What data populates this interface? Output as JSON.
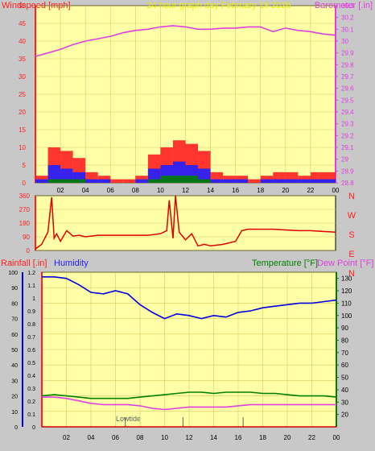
{
  "chart_data": [
    {
      "type": "line",
      "title": "24 hour graph day   February 19 2026",
      "ylabel_left": "Windspeed [mph]",
      "ylabel_right": "Barometer [.in]",
      "x_ticks": [
        "02",
        "04",
        "06",
        "08",
        "10",
        "12",
        "14",
        "16",
        "18",
        "20",
        "22",
        "00"
      ],
      "y_left_ticks": [
        "0",
        "5",
        "10",
        "15",
        "20",
        "25",
        "30",
        "35",
        "40",
        "45",
        "50"
      ],
      "y_left_range": [
        0,
        50
      ],
      "y_right_ticks": [
        "28.8",
        "28.9",
        "29",
        "29.1",
        "29.2",
        "29.3",
        "29.4",
        "29.5",
        "29.6",
        "29.7",
        "29.8",
        "29.9",
        "30",
        "30.1",
        "30.2",
        "30.3"
      ],
      "y_right_range": [
        28.8,
        30.3
      ],
      "grid": true,
      "series": [
        {
          "axis": "right",
          "color": "#e040e0",
          "x": [
            0,
            1,
            2,
            3,
            4,
            5,
            6,
            7,
            8,
            9,
            10,
            11,
            12,
            13,
            14,
            15,
            16,
            17,
            18,
            19,
            20,
            21,
            22,
            23,
            24
          ],
          "values": [
            29.87,
            29.9,
            29.93,
            29.97,
            30.0,
            30.02,
            30.04,
            30.07,
            30.09,
            30.1,
            30.12,
            30.13,
            30.12,
            30.1,
            30.1,
            30.11,
            30.11,
            30.12,
            30.12,
            30.08,
            30.11,
            30.09,
            30.08,
            30.06,
            30.05
          ]
        },
        {
          "axis": "left",
          "style": "bars",
          "color": "#ff2020",
          "x": [
            0,
            1,
            2,
            3,
            4,
            5,
            6,
            7,
            8,
            9,
            10,
            11,
            12,
            13,
            14,
            15,
            16,
            17,
            18,
            19,
            20,
            21,
            22,
            23,
            24
          ],
          "values": [
            2,
            10,
            9,
            7,
            3,
            2,
            1,
            1,
            2,
            8,
            10,
            12,
            11,
            9,
            3,
            2,
            2,
            1,
            2,
            3,
            3,
            2,
            3,
            3,
            3
          ]
        },
        {
          "axis": "left",
          "style": "bars",
          "color": "#2020ff",
          "x": [
            0,
            1,
            2,
            3,
            4,
            5,
            6,
            7,
            8,
            9,
            10,
            11,
            12,
            13,
            14,
            15,
            16,
            17,
            18,
            19,
            20,
            21,
            22,
            23,
            24
          ],
          "values": [
            1,
            5,
            4,
            3,
            1,
            1,
            0,
            0,
            1,
            4,
            5,
            6,
            5,
            4,
            1,
            1,
            1,
            0,
            1,
            1,
            1,
            1,
            1,
            1,
            1
          ]
        },
        {
          "axis": "left",
          "style": "bars",
          "color": "#008000",
          "x": [
            0,
            1,
            2,
            3,
            4,
            5,
            6,
            7,
            8,
            9,
            10,
            11,
            12,
            13,
            14,
            15,
            16,
            17,
            18,
            19,
            20,
            21,
            22,
            23,
            24
          ],
          "values": [
            0,
            1,
            1,
            1,
            0,
            0,
            0,
            0,
            0,
            1,
            2,
            2,
            2,
            1,
            0,
            0,
            0,
            0,
            0,
            0,
            0,
            0,
            0,
            0,
            0
          ]
        }
      ]
    },
    {
      "type": "line",
      "y_left_ticks": [
        "0",
        "90",
        "180",
        "270",
        "360"
      ],
      "y_left_range": [
        0,
        360
      ],
      "y_right_labels": [
        "N",
        "W",
        "S",
        "E",
        "N"
      ],
      "grid": true,
      "series": [
        {
          "color": "#dd0000",
          "x": [
            0,
            0.5,
            1,
            1.3,
            1.5,
            1.7,
            2,
            2.5,
            3,
            3.5,
            4,
            5,
            6,
            7,
            8,
            9,
            10,
            10.5,
            10.7,
            11,
            11.2,
            11.5,
            11.8,
            12,
            12.5,
            13,
            13.5,
            14,
            14.5,
            15,
            16,
            16.5,
            17,
            18,
            19,
            20,
            21,
            22,
            23,
            24
          ],
          "values": [
            10,
            40,
            120,
            350,
            80,
            110,
            60,
            130,
            95,
            100,
            90,
            100,
            100,
            100,
            100,
            100,
            110,
            130,
            330,
            80,
            360,
            120,
            90,
            70,
            110,
            30,
            40,
            30,
            35,
            40,
            60,
            130,
            140,
            140,
            140,
            135,
            130,
            130,
            125,
            120
          ]
        }
      ]
    },
    {
      "type": "line",
      "ylabel_left": "Rainfall [.in]",
      "ylabel_left2": "Humidity",
      "ylabel_right": "Temperature [°F]",
      "ylabel_right2": "Dew Point [°F]",
      "annotation": "Lowtide",
      "x_ticks": [
        "02",
        "04",
        "06",
        "08",
        "10",
        "12",
        "14",
        "16",
        "18",
        "20",
        "22",
        "00"
      ],
      "humidity_ticks": [
        "0",
        "10",
        "20",
        "30",
        "40",
        "50",
        "60",
        "70",
        "80",
        "90",
        "100"
      ],
      "rain_ticks": [
        "0",
        "0.1",
        "0.2",
        "0.3",
        "0.4",
        "0.5",
        "0.6",
        "0.7",
        "0.8",
        "0.9",
        "1",
        "1.1",
        "1.2"
      ],
      "rain_range": [
        0,
        1.2
      ],
      "temp_ticks": [
        "20",
        "30",
        "40",
        "50",
        "60",
        "70",
        "80",
        "90",
        "100",
        "110",
        "120",
        "130"
      ],
      "temp_range": [
        10,
        135
      ],
      "humidity_range": [
        0,
        100
      ],
      "grid": true,
      "series": [
        {
          "name": "Humidity",
          "axis": "humidity",
          "color": "#0000dd",
          "x": [
            0,
            1,
            2,
            3,
            4,
            5,
            6,
            7,
            8,
            9,
            10,
            11,
            12,
            13,
            14,
            15,
            16,
            17,
            18,
            19,
            20,
            21,
            22,
            23,
            24
          ],
          "values": [
            97,
            97,
            96,
            92,
            87,
            86,
            88,
            86,
            79,
            74,
            70,
            73,
            72,
            70,
            72,
            71,
            74,
            75,
            77,
            78,
            79,
            80,
            80,
            81,
            82
          ]
        },
        {
          "name": "Temperature",
          "axis": "temp",
          "color": "#008000",
          "x": [
            0,
            1,
            2,
            3,
            4,
            5,
            6,
            7,
            8,
            9,
            10,
            11,
            12,
            13,
            14,
            15,
            16,
            17,
            18,
            19,
            20,
            21,
            22,
            23,
            24
          ],
          "values": [
            35,
            36,
            35,
            34,
            33,
            33,
            33,
            33,
            34,
            35,
            36,
            37,
            38,
            38,
            37,
            38,
            38,
            38,
            37,
            37,
            36,
            35,
            35,
            35,
            34
          ]
        },
        {
          "name": "Dew Point",
          "axis": "temp",
          "color": "#e040e0",
          "x": [
            0,
            1,
            2,
            3,
            4,
            5,
            6,
            7,
            8,
            9,
            10,
            11,
            12,
            13,
            14,
            15,
            16,
            17,
            18,
            19,
            20,
            21,
            22,
            23,
            24
          ],
          "values": [
            34,
            34,
            33,
            31,
            29,
            28,
            28,
            28,
            27,
            25,
            24,
            25,
            26,
            26,
            26,
            26,
            27,
            28,
            28,
            28,
            28,
            28,
            28,
            28,
            28
          ]
        },
        {
          "name": "Rainfall",
          "axis": "rain",
          "color": "#cc0000",
          "x": [
            0,
            24
          ],
          "values": [
            0,
            0
          ]
        }
      ]
    }
  ]
}
